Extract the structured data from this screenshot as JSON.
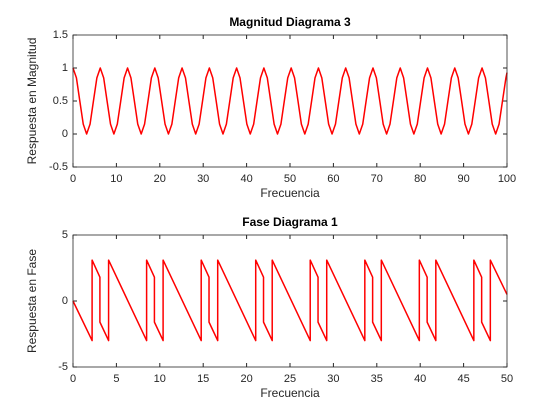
{
  "chart_data": [
    {
      "type": "line",
      "title": "Magnitud Diagrama 3",
      "xlabel": "Frecuencia",
      "ylabel": "Respuesta en Magnitud",
      "xlim": [
        0,
        100
      ],
      "xticks": [
        0,
        10,
        20,
        30,
        40,
        50,
        60,
        70,
        80,
        90,
        100
      ],
      "ylim": [
        -0.5,
        1.5
      ],
      "yticks": [
        -0.5,
        0,
        0.5,
        1,
        1.5
      ],
      "x": [
        0,
        0.79,
        1.57,
        2.36,
        3.14,
        3.93,
        4.71,
        5.5,
        6.28,
        7.07,
        7.85,
        8.64,
        9.42,
        10.21,
        11.0,
        11.78,
        12.57,
        13.35,
        14.14,
        14.92,
        15.71,
        16.49,
        17.28,
        18.06,
        18.85,
        19.63,
        20.42,
        21.21,
        21.99,
        22.78,
        23.56,
        24.35,
        25.13,
        25.92,
        26.7,
        27.49,
        28.27,
        29.06,
        29.85,
        30.63,
        31.42,
        32.2,
        32.99,
        33.77,
        34.56,
        35.34,
        36.13,
        36.91,
        37.7,
        38.48,
        39.27,
        40.06,
        40.84,
        41.63,
        42.41,
        43.2,
        43.98,
        44.77,
        45.55,
        46.34,
        47.12,
        47.91,
        48.69,
        49.48,
        50.27,
        51.05,
        51.84,
        52.62,
        53.41,
        54.19,
        54.98,
        55.76,
        56.55,
        57.33,
        58.12,
        58.9,
        59.69,
        60.48,
        61.26,
        62.05,
        62.83,
        63.62,
        64.4,
        65.19,
        65.97,
        66.76,
        67.54,
        68.33,
        69.12,
        69.9,
        70.69,
        71.47,
        72.26,
        73.04,
        73.83,
        74.61,
        75.4,
        76.18,
        76.97,
        77.75,
        78.54,
        79.33,
        80.11,
        80.9,
        81.68,
        82.47,
        83.25,
        84.04,
        84.82,
        85.61,
        86.39,
        87.18,
        87.96,
        88.75,
        89.54,
        90.32,
        91.11,
        91.89,
        92.68,
        93.46,
        94.25,
        95.03,
        95.82,
        96.6,
        97.39,
        98.17,
        98.96,
        99.75,
        100
      ],
      "series": [
        {
          "color": "#ff0000",
          "values": [
            1,
            0.85,
            0.5,
            0.15,
            0,
            0.15,
            0.5,
            0.85,
            1,
            0.85,
            0.5,
            0.15,
            0,
            0.15,
            0.5,
            0.85,
            1,
            0.85,
            0.5,
            0.15,
            0,
            0.15,
            0.5,
            0.85,
            1,
            0.85,
            0.5,
            0.15,
            0,
            0.15,
            0.5,
            0.85,
            1,
            0.85,
            0.5,
            0.15,
            0,
            0.15,
            0.5,
            0.85,
            1,
            0.85,
            0.5,
            0.15,
            0,
            0.15,
            0.5,
            0.85,
            1,
            0.85,
            0.5,
            0.15,
            0,
            0.15,
            0.5,
            0.85,
            1,
            0.85,
            0.5,
            0.15,
            0,
            0.15,
            0.5,
            0.85,
            1,
            0.85,
            0.5,
            0.15,
            0,
            0.15,
            0.5,
            0.85,
            1,
            0.85,
            0.5,
            0.15,
            0,
            0.15,
            0.5,
            0.85,
            1,
            0.85,
            0.5,
            0.15,
            0,
            0.15,
            0.5,
            0.85,
            1,
            0.85,
            0.5,
            0.15,
            0,
            0.15,
            0.5,
            0.85,
            1,
            0.85,
            0.5,
            0.15,
            0,
            0.15,
            0.5,
            0.85,
            1,
            0.85,
            0.5,
            0.15,
            0,
            0.15,
            0.5,
            0.85,
            1,
            0.85,
            0.5,
            0.15,
            0,
            0.15,
            0.5,
            0.85,
            1,
            0.85,
            0.5,
            0.15,
            0,
            0.15,
            0.5,
            0.85,
            0.93
          ]
        }
      ]
    },
    {
      "type": "line",
      "title": "Fase Diagrama 1",
      "xlabel": "Frecuencia",
      "ylabel": "Respuesta en Fase",
      "xlim": [
        0,
        50
      ],
      "xticks": [
        0,
        5,
        10,
        15,
        20,
        25,
        30,
        35,
        40,
        45,
        50
      ],
      "ylim": [
        -5,
        5
      ],
      "yticks": [
        -5,
        0,
        5
      ],
      "x": [
        0,
        2.2,
        2.2,
        3.1,
        3.1,
        4.1,
        4.1,
        8.48,
        8.48,
        9.38,
        9.38,
        10.38,
        10.38,
        14.77,
        14.77,
        15.67,
        15.67,
        16.67,
        16.67,
        21.05,
        21.05,
        21.95,
        21.95,
        22.95,
        22.95,
        27.33,
        27.33,
        28.23,
        28.23,
        29.23,
        29.23,
        33.62,
        33.62,
        34.52,
        34.52,
        35.52,
        35.52,
        39.9,
        39.9,
        40.8,
        40.8,
        41.8,
        41.8,
        46.18,
        46.18,
        47.08,
        47.08,
        48.08,
        48.08,
        50
      ],
      "series": [
        {
          "color": "#ff0000",
          "values": [
            0,
            -3.0,
            3.1,
            1.8,
            -1.6,
            -3.0,
            3.1,
            -3.0,
            3.1,
            1.8,
            -1.6,
            -3.0,
            3.1,
            -3.0,
            3.1,
            1.8,
            -1.6,
            -3.0,
            3.1,
            -3.0,
            3.1,
            1.8,
            -1.6,
            -3.0,
            3.1,
            -3.0,
            3.1,
            1.8,
            -1.6,
            -3.0,
            3.1,
            -3.0,
            3.1,
            1.8,
            -1.6,
            -3.0,
            3.1,
            -3.0,
            3.1,
            1.8,
            -1.6,
            -3.0,
            3.1,
            -3.0,
            3.1,
            1.8,
            -1.6,
            -3.0,
            3.1,
            0.5
          ]
        }
      ]
    }
  ]
}
